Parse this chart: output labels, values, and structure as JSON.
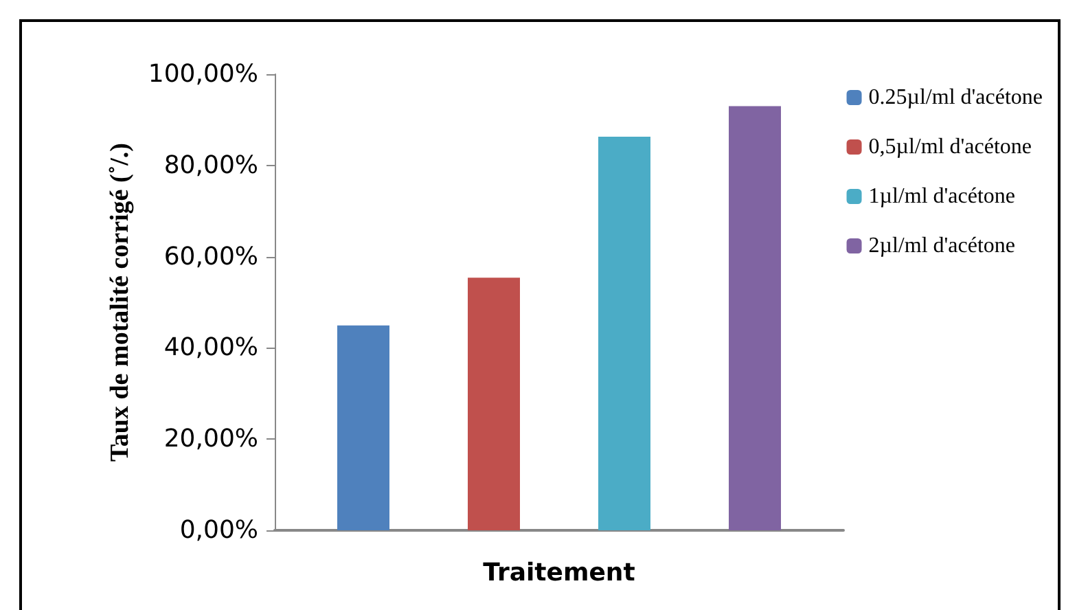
{
  "chart_data": {
    "type": "bar",
    "xlabel": "Traitement",
    "ylabel": "Taux de motalité corrigé (˚/.)",
    "categories": [
      null
    ],
    "series": [
      {
        "name": "0.25µl/ml d'acétone",
        "color": "#4f81bd",
        "values": [
          44.9
        ]
      },
      {
        "name": "0,5µl/ml d'acétone",
        "color": "#c0504d",
        "values": [
          55.4
        ]
      },
      {
        "name": "1µl/ml d'acétone",
        "color": "#4bacc6",
        "values": [
          86.3
        ]
      },
      {
        "name": "2µl/ml d'acétone",
        "color": "#8064a2",
        "values": [
          93.0
        ]
      }
    ],
    "ylim": [
      0,
      100
    ],
    "yticks": [
      {
        "value": 0,
        "label": "0,00%"
      },
      {
        "value": 20,
        "label": "20,00%"
      },
      {
        "value": 40,
        "label": "40,00%"
      },
      {
        "value": 60,
        "label": "60,00%"
      },
      {
        "value": 80,
        "label": "80,00%"
      },
      {
        "value": 100,
        "label": "100,00%"
      }
    ],
    "grid": false,
    "legend": "right"
  }
}
